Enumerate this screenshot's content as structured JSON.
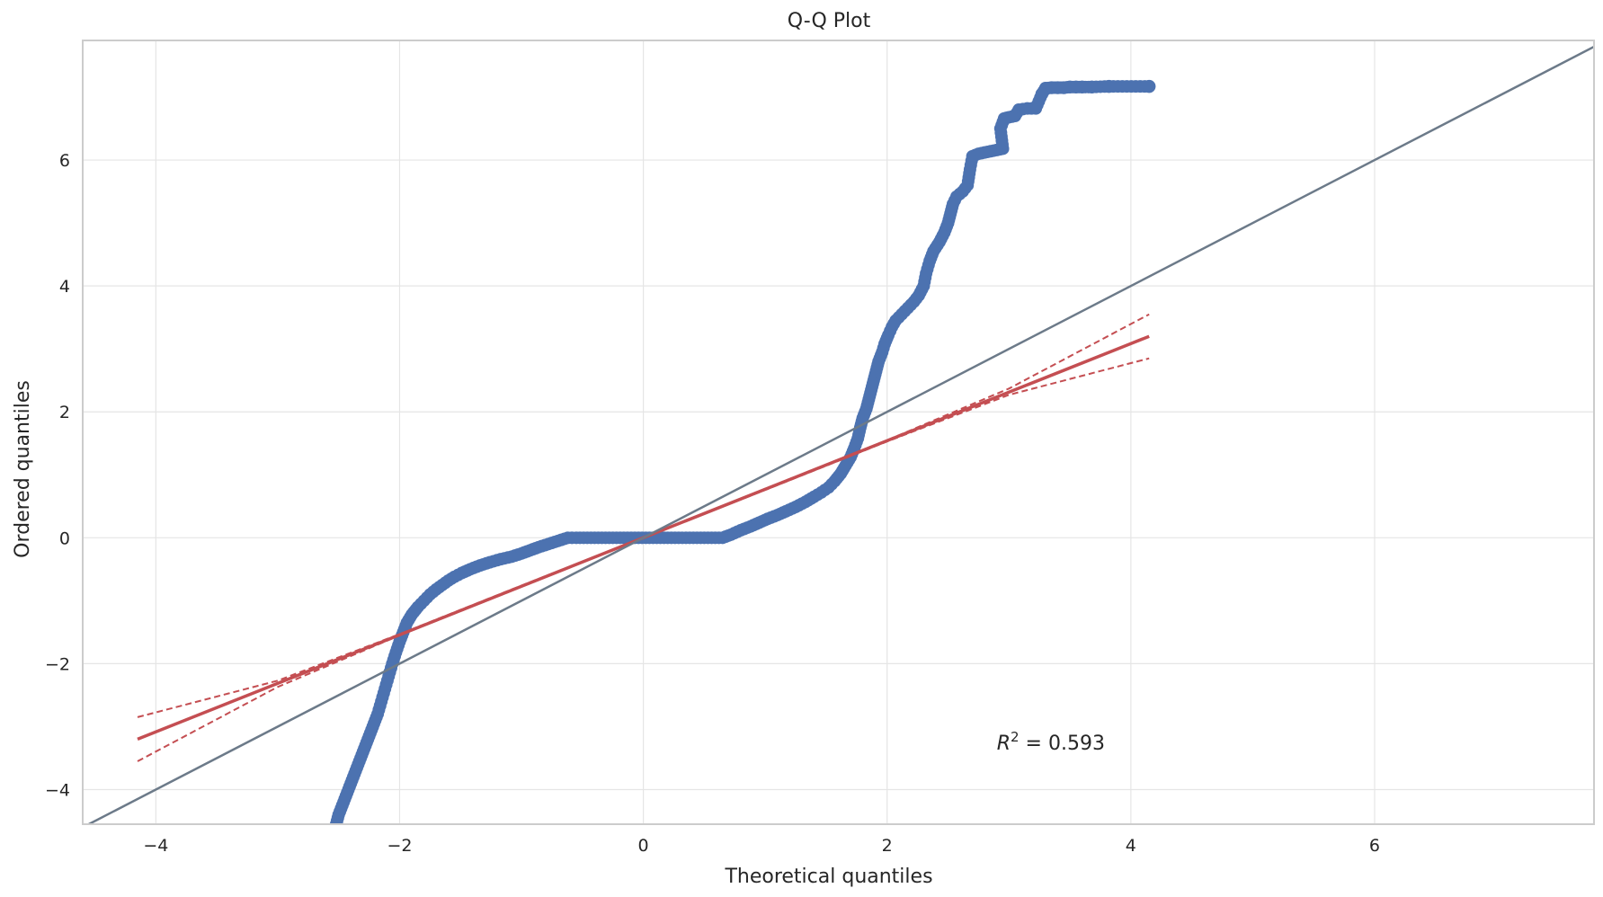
{
  "chart_data": {
    "type": "scatter",
    "title": "Q-Q Plot",
    "xlabel": "Theoretical quantiles",
    "ylabel": "Ordered quantiles",
    "xlim": [
      -4.6,
      7.8
    ],
    "ylim": [
      -4.55,
      7.9
    ],
    "xticks": [
      -4,
      -2,
      0,
      2,
      4,
      6
    ],
    "yticks": [
      -4,
      -2,
      0,
      2,
      4,
      6
    ],
    "xtick_labels": [
      "−4",
      "−2",
      "0",
      "2",
      "4",
      "6"
    ],
    "ytick_labels": [
      "−4",
      "−2",
      "0",
      "2",
      "4",
      "6"
    ],
    "grid": true,
    "annotation": {
      "prefix": "R",
      "sup": "2",
      "suffix": " = 0.593",
      "x": 2.9,
      "y": -3.25
    },
    "series": [
      {
        "type": "scatter",
        "color": "#4c72b0",
        "points": [
          [
            4.15,
            7.17
          ],
          [
            3.82,
            7.17
          ],
          [
            3.68,
            7.16
          ],
          [
            3.6,
            7.16
          ],
          [
            3.55,
            7.16
          ],
          [
            3.5,
            7.16
          ],
          [
            3.45,
            7.15
          ],
          [
            3.4,
            7.15
          ],
          [
            3.35,
            7.15
          ],
          [
            3.3,
            7.14
          ],
          [
            3.27,
            7.05
          ],
          [
            3.22,
            6.82
          ],
          [
            3.15,
            6.82
          ],
          [
            3.08,
            6.8
          ],
          [
            3.05,
            6.7
          ],
          [
            3.0,
            6.68
          ],
          [
            2.96,
            6.66
          ],
          [
            2.93,
            6.5
          ],
          [
            2.95,
            6.18
          ],
          [
            2.9,
            6.16
          ],
          [
            2.85,
            6.14
          ],
          [
            2.8,
            6.12
          ],
          [
            2.75,
            6.1
          ],
          [
            2.7,
            6.06
          ],
          [
            2.68,
            5.85
          ],
          [
            2.66,
            5.6
          ],
          [
            2.62,
            5.5
          ],
          [
            2.57,
            5.42
          ],
          [
            2.54,
            5.3
          ],
          [
            2.52,
            5.15
          ],
          [
            2.5,
            5.0
          ],
          [
            2.47,
            4.85
          ],
          [
            2.43,
            4.7
          ],
          [
            2.38,
            4.55
          ],
          [
            2.35,
            4.4
          ],
          [
            2.32,
            4.2
          ],
          [
            2.3,
            4.0
          ],
          [
            2.26,
            3.85
          ],
          [
            2.22,
            3.75
          ],
          [
            2.17,
            3.65
          ],
          [
            2.12,
            3.55
          ],
          [
            2.07,
            3.45
          ],
          [
            2.04,
            3.35
          ],
          [
            2.01,
            3.22
          ],
          [
            1.98,
            3.08
          ],
          [
            1.96,
            2.95
          ],
          [
            1.93,
            2.8
          ],
          [
            1.91,
            2.65
          ],
          [
            1.89,
            2.5
          ],
          [
            1.87,
            2.35
          ],
          [
            1.85,
            2.2
          ],
          [
            1.83,
            2.05
          ],
          [
            1.8,
            1.9
          ],
          [
            1.78,
            1.75
          ],
          [
            1.76,
            1.58
          ],
          [
            1.73,
            1.42
          ],
          [
            1.7,
            1.28
          ],
          [
            1.66,
            1.15
          ],
          [
            1.62,
            1.02
          ],
          [
            1.57,
            0.9
          ],
          [
            1.52,
            0.8
          ],
          [
            1.46,
            0.72
          ],
          [
            1.4,
            0.65
          ],
          [
            1.33,
            0.57
          ],
          [
            1.25,
            0.49
          ],
          [
            1.17,
            0.42
          ],
          [
            1.1,
            0.36
          ],
          [
            1.02,
            0.3
          ],
          [
            0.95,
            0.24
          ],
          [
            0.88,
            0.18
          ],
          [
            0.8,
            0.12
          ],
          [
            0.72,
            0.05
          ],
          [
            0.65,
            0.0
          ],
          [
            0.5,
            0.0
          ],
          [
            0.35,
            0.0
          ],
          [
            0.2,
            0.0
          ],
          [
            0.05,
            0.0
          ],
          [
            -0.1,
            0.0
          ],
          [
            -0.25,
            0.0
          ],
          [
            -0.4,
            0.0
          ],
          [
            -0.55,
            0.0
          ],
          [
            -0.62,
            0.0
          ],
          [
            -0.7,
            -0.05
          ],
          [
            -0.78,
            -0.1
          ],
          [
            -0.86,
            -0.15
          ],
          [
            -0.93,
            -0.2
          ],
          [
            -1.0,
            -0.25
          ],
          [
            -1.08,
            -0.3
          ],
          [
            -1.17,
            -0.34
          ],
          [
            -1.26,
            -0.39
          ],
          [
            -1.34,
            -0.44
          ],
          [
            -1.42,
            -0.5
          ],
          [
            -1.49,
            -0.56
          ],
          [
            -1.55,
            -0.62
          ],
          [
            -1.6,
            -0.68
          ],
          [
            -1.65,
            -0.75
          ],
          [
            -1.7,
            -0.82
          ],
          [
            -1.75,
            -0.9
          ],
          [
            -1.8,
            -1.0
          ],
          [
            -1.85,
            -1.1
          ],
          [
            -1.9,
            -1.22
          ],
          [
            -1.94,
            -1.35
          ],
          [
            -1.97,
            -1.5
          ],
          [
            -2.0,
            -1.65
          ],
          [
            -2.03,
            -1.82
          ],
          [
            -2.06,
            -2.0
          ],
          [
            -2.09,
            -2.2
          ],
          [
            -2.12,
            -2.4
          ],
          [
            -2.15,
            -2.6
          ],
          [
            -2.18,
            -2.8
          ],
          [
            -2.22,
            -3.0
          ],
          [
            -2.26,
            -3.2
          ],
          [
            -2.3,
            -3.4
          ],
          [
            -2.34,
            -3.6
          ],
          [
            -2.38,
            -3.8
          ],
          [
            -2.42,
            -4.0
          ],
          [
            -2.46,
            -4.2
          ],
          [
            -2.5,
            -4.4
          ],
          [
            -2.52,
            -4.55
          ]
        ]
      },
      {
        "type": "line",
        "name": "fit",
        "color": "#c44e52",
        "x": [
          -4.15,
          4.15
        ],
        "y": [
          -3.2,
          3.2
        ]
      },
      {
        "type": "dashed",
        "name": "ci-upper",
        "color": "#c44e52",
        "x": [
          -4.15,
          -3.0,
          -2.0,
          -1.0,
          0.0,
          1.0,
          2.0,
          3.0,
          4.15
        ],
        "y": [
          -2.85,
          -2.27,
          -1.53,
          -0.76,
          0.0,
          0.78,
          1.55,
          2.37,
          3.55
        ]
      },
      {
        "type": "dashed",
        "name": "ci-lower",
        "color": "#c44e52",
        "x": [
          -4.15,
          -3.0,
          -2.0,
          -1.0,
          0.0,
          1.0,
          2.0,
          3.0,
          4.15
        ],
        "y": [
          -3.55,
          -2.37,
          -1.55,
          -0.78,
          0.0,
          0.76,
          1.53,
          2.27,
          2.85
        ]
      },
      {
        "type": "line",
        "name": "reference",
        "color": "#6c7a89",
        "x": [
          -4.6,
          7.8
        ],
        "y": [
          -4.6,
          7.8
        ]
      }
    ]
  }
}
